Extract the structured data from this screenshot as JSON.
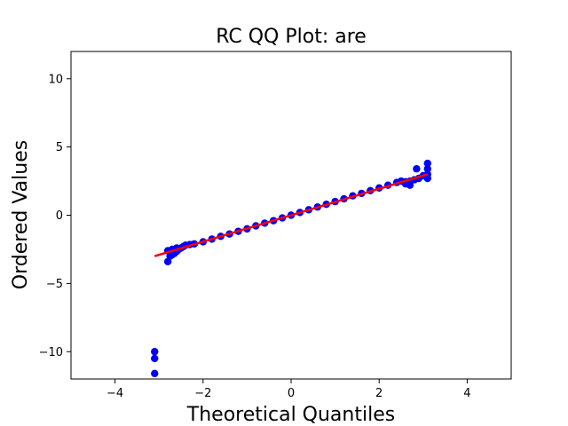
{
  "chart_data": {
    "type": "scatter",
    "title": "RC QQ Plot: are",
    "xlabel": "Theoretical Quantiles",
    "ylabel": "Ordered Values",
    "xlim": [
      -5,
      5
    ],
    "ylim": [
      -12,
      12
    ],
    "xticks": [
      -4,
      -2,
      0,
      2,
      4
    ],
    "yticks": [
      -10,
      -5,
      0,
      5,
      10
    ],
    "xtick_labels": [
      "−4",
      "−2",
      "0",
      "2",
      "4"
    ],
    "ytick_labels": [
      "−10",
      "−5",
      "0",
      "5",
      "10"
    ],
    "grid": false,
    "colors": {
      "points": "#0000ff",
      "line": "#ff0000",
      "axes": "#000000"
    },
    "series": [
      {
        "type": "scatter",
        "x": [
          -3.1,
          -3.1,
          -3.1,
          -2.8,
          -2.75,
          -2.7,
          -2.65,
          -2.6,
          -2.55,
          -2.5,
          -2.45,
          -2.4,
          -2.3,
          -2.2,
          -2.0,
          -1.8,
          -1.6,
          -1.4,
          -1.2,
          -1.0,
          -0.8,
          -0.6,
          -0.4,
          -0.2,
          0.0,
          0.2,
          0.4,
          0.6,
          0.8,
          1.0,
          1.2,
          1.4,
          1.6,
          1.8,
          2.0,
          2.2,
          2.4,
          2.5,
          2.6,
          2.7,
          2.8,
          2.85,
          2.9,
          3.0,
          3.1,
          3.1,
          3.1,
          3.1,
          -2.8,
          -2.7,
          -2.6,
          2.6,
          2.7
        ],
        "y": [
          -11.6,
          -10.5,
          -10.0,
          -3.4,
          -3.0,
          -2.9,
          -2.8,
          -2.65,
          -2.5,
          -2.4,
          -2.3,
          -2.2,
          -2.15,
          -2.1,
          -1.95,
          -1.75,
          -1.55,
          -1.38,
          -1.18,
          -1.0,
          -0.78,
          -0.58,
          -0.4,
          -0.2,
          0.0,
          0.2,
          0.4,
          0.6,
          0.8,
          1.0,
          1.2,
          1.42,
          1.6,
          1.8,
          2.0,
          2.2,
          2.4,
          2.5,
          2.45,
          2.5,
          2.6,
          3.4,
          2.7,
          2.9,
          3.8,
          3.4,
          3.0,
          2.7,
          -2.6,
          -2.5,
          -2.4,
          2.3,
          2.2
        ]
      },
      {
        "type": "line",
        "x": [
          -3.1,
          3.1
        ],
        "y": [
          -3.0,
          3.0
        ]
      }
    ]
  }
}
